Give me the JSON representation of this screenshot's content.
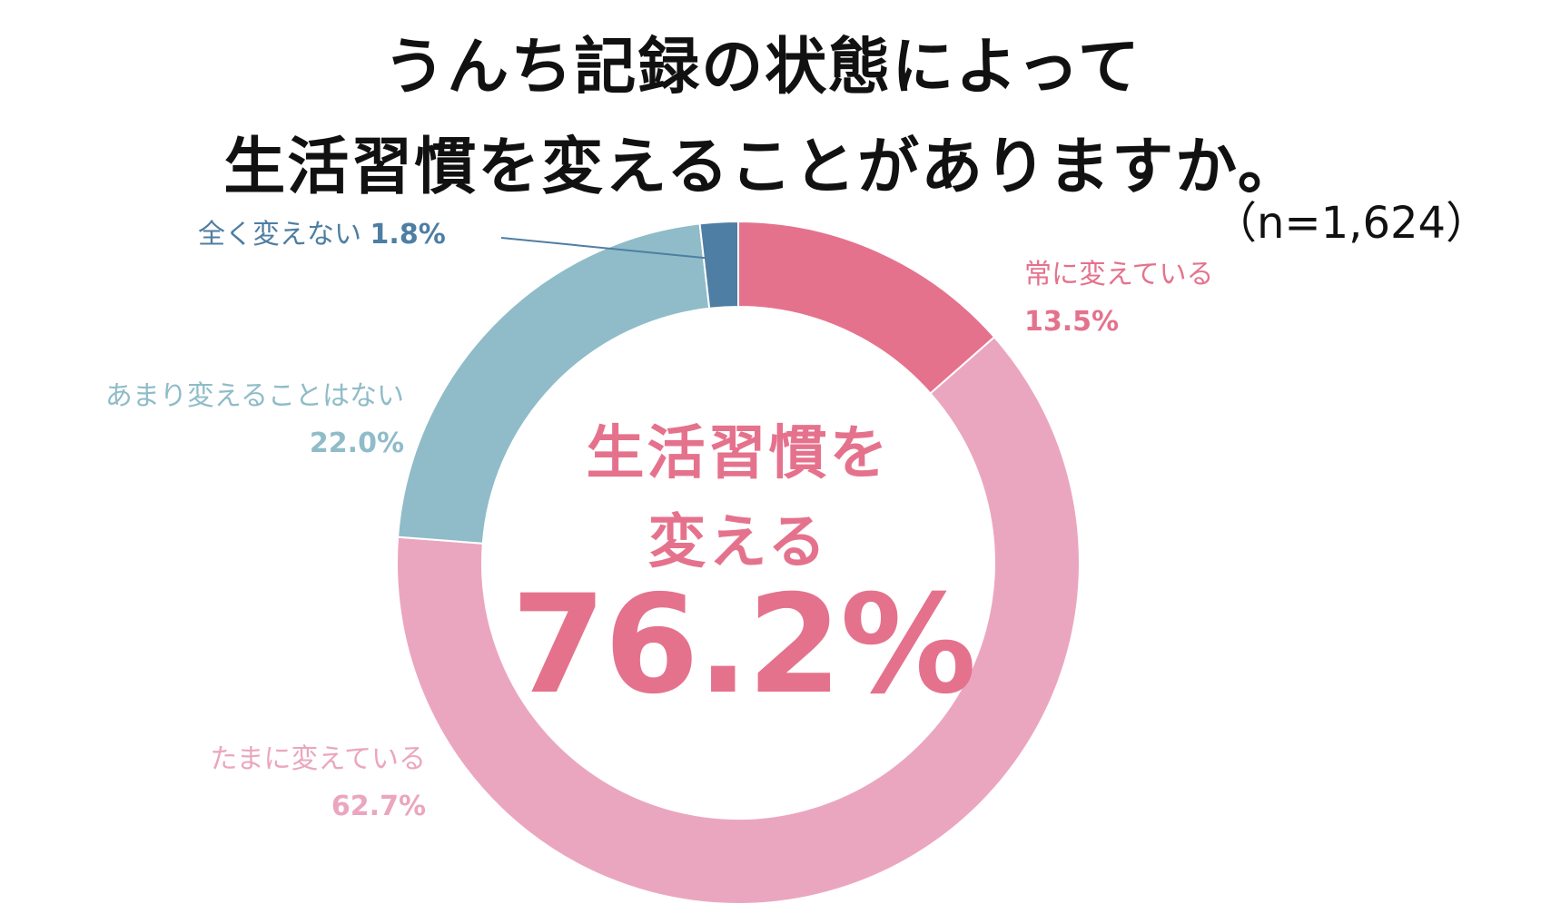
{
  "title": {
    "line1": "うんち記録の状態によって",
    "line2": "生活習慣を変えることがありますか。"
  },
  "sample_size": "（n=1,624）",
  "center": {
    "line1": "生活習慣を",
    "line2": "変える",
    "value": "76.2%"
  },
  "colors": {
    "always": "#e5728d",
    "sometimes": "#eba6bf",
    "rarely": "#8fbcc8",
    "never": "#4e7ea3"
  },
  "chart_data": {
    "type": "pie",
    "donut": true,
    "categories": [
      "常に変えている",
      "たまに変えている",
      "あまり変えることはない",
      "全く変えない"
    ],
    "values": [
      13.5,
      62.7,
      22.0,
      1.8
    ],
    "value_labels": [
      "13.5%",
      "62.7%",
      "22.0%",
      "1.8%"
    ],
    "start": "top",
    "direction": "clockwise"
  }
}
